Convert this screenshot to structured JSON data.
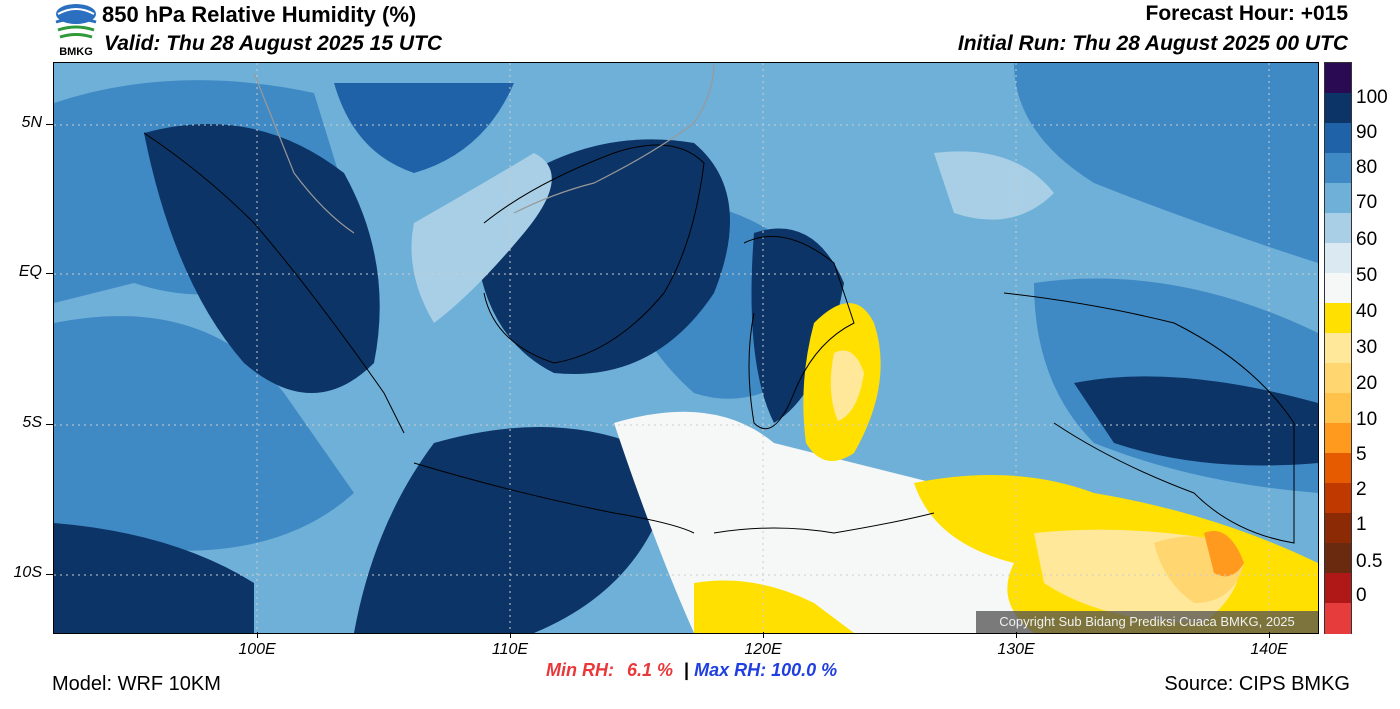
{
  "header": {
    "title": "850 hPa Relative Humidity (%)",
    "valid": "Valid: Thu 28 August 2025 15 UTC",
    "forecast_hour": "Forecast Hour: +015",
    "initial_run": "Initial Run: Thu 28 August 2025 00 UTC",
    "logo_text": "BMKG"
  },
  "map": {
    "lat_labels": [
      "5N",
      "EQ",
      "5S",
      "10S"
    ],
    "lon_labels": [
      "100E",
      "110E",
      "120E",
      "130E",
      "140E"
    ],
    "copyright": "Copyright Sub Bidang Prediksi Cuaca BMKG, 2025"
  },
  "colorbar": {
    "labels": [
      "100",
      "90",
      "80",
      "70",
      "60",
      "50",
      "40",
      "30",
      "20",
      "10",
      "5",
      "2",
      "1",
      "0.5",
      "0"
    ],
    "colors": [
      "#2a0a52",
      "#0c3466",
      "#1f62a8",
      "#3f8ac4",
      "#6fb0d8",
      "#a8cfe5",
      "#dbe9f2",
      "#f6f7f7",
      "#ffe000",
      "#ffe89a",
      "#ffd66f",
      "#ffc24a",
      "#ff9a1e",
      "#e65a00",
      "#c03a00",
      "#8c2a06",
      "#6a2a10",
      "#b01818",
      "#e63c3c"
    ]
  },
  "footer": {
    "min_label": "Min RH:",
    "min_value": "6.1 %",
    "separator": "|",
    "max_label": "Max RH: 100.0 %",
    "model": "Model: WRF 10KM",
    "source": "Source: CIPS BMKG"
  }
}
